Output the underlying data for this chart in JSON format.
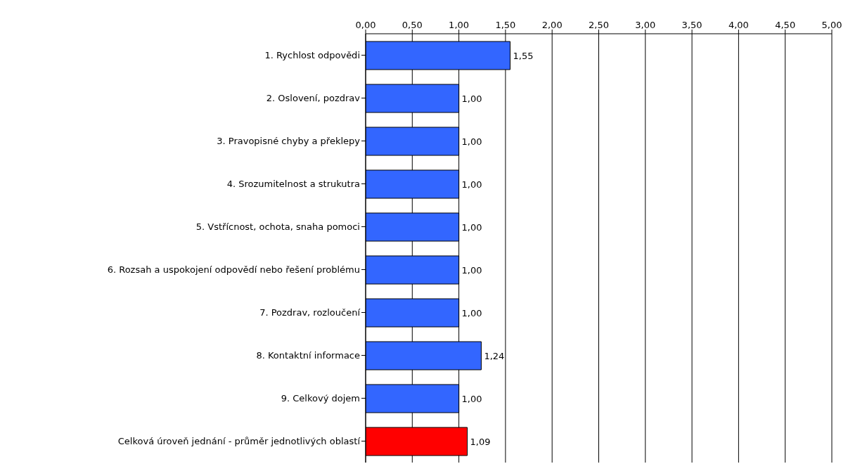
{
  "chart_data": {
    "type": "bar",
    "orientation": "horizontal",
    "categories": [
      "1. Rychlost odpovědi",
      "2. Oslovení, pozdrav",
      "3. Pravopisné chyby a překlepy",
      "4. Srozumitelnost a strukutra",
      "5. Vstřícnost, ochota, snaha pomoci",
      "6. Rozsah a uspokojení odpovědí nebo řešení problému",
      "7. Pozdrav, rozloučení",
      "8. Kontaktní informace",
      "9. Celkový dojem",
      "Celková úroveň jednání - průměr jednotlivých oblastí"
    ],
    "values": [
      1.55,
      1.0,
      1.0,
      1.0,
      1.0,
      1.0,
      1.0,
      1.24,
      1.0,
      1.09
    ],
    "value_labels": [
      "1,55",
      "1,00",
      "1,00",
      "1,00",
      "1,00",
      "1,00",
      "1,00",
      "1,24",
      "1,00",
      "1,09"
    ],
    "colors": [
      "#3366ff",
      "#3366ff",
      "#3366ff",
      "#3366ff",
      "#3366ff",
      "#3366ff",
      "#3366ff",
      "#3366ff",
      "#3366ff",
      "#ff0000"
    ],
    "xlim": [
      0,
      5
    ],
    "xticks": [
      {
        "value": 0,
        "label": "0,00"
      },
      {
        "value": 0.5,
        "label": "0,50"
      },
      {
        "value": 1,
        "label": "1,00"
      },
      {
        "value": 1.5,
        "label": "1,50"
      },
      {
        "value": 2,
        "label": "2,00"
      },
      {
        "value": 2.5,
        "label": "2,50"
      },
      {
        "value": 3,
        "label": "3,00"
      },
      {
        "value": 3.5,
        "label": "3,50"
      },
      {
        "value": 4,
        "label": "4,00"
      },
      {
        "value": 4.5,
        "label": "4,50"
      },
      {
        "value": 5,
        "label": "5,00"
      }
    ],
    "grid": "x",
    "legend": false
  }
}
